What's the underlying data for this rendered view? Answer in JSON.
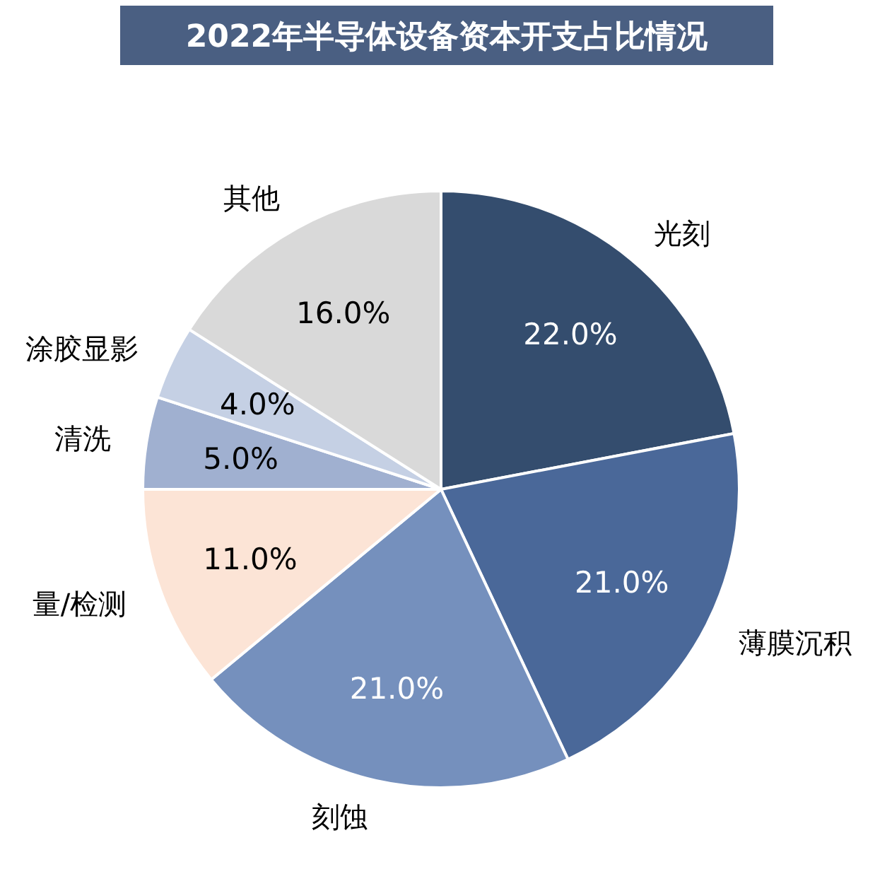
{
  "chart_data": {
    "type": "pie",
    "title": "2022年半导体设备资本开支占比情况",
    "categories": [
      "光刻",
      "薄膜沉积",
      "刻蚀",
      "量/检测",
      "清洗",
      "涂胶显影",
      "其他"
    ],
    "values": [
      22.0,
      21.0,
      21.0,
      11.0,
      5.0,
      4.0,
      16.0
    ],
    "value_labels": [
      "22.0%",
      "21.0%",
      "21.0%",
      "11.0%",
      "5.0%",
      "4.0%",
      "16.0%"
    ],
    "colors": [
      "#344d6e",
      "#4a6899",
      "#7590bd",
      "#fce4d6",
      "#a0b0d0",
      "#c5d0e4",
      "#d9d9d9"
    ]
  }
}
